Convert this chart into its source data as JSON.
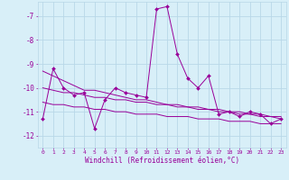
{
  "x": [
    0,
    1,
    2,
    3,
    4,
    5,
    6,
    7,
    8,
    9,
    10,
    11,
    12,
    13,
    14,
    15,
    16,
    17,
    18,
    19,
    20,
    21,
    22,
    23
  ],
  "line1": [
    -11.3,
    -9.2,
    -10.0,
    -10.3,
    -10.2,
    -11.7,
    -10.5,
    -10.0,
    -10.2,
    -10.3,
    -10.4,
    -6.7,
    -6.6,
    -8.6,
    -9.6,
    -10.0,
    -9.5,
    -11.1,
    -11.0,
    -11.2,
    -11.0,
    -11.1,
    -11.5,
    -11.3
  ],
  "trend1": [
    -9.3,
    -9.5,
    -9.7,
    -9.9,
    -10.1,
    -10.1,
    -10.2,
    -10.3,
    -10.4,
    -10.5,
    -10.5,
    -10.6,
    -10.7,
    -10.7,
    -10.8,
    -10.8,
    -10.9,
    -10.9,
    -11.0,
    -11.0,
    -11.1,
    -11.1,
    -11.2,
    -11.2
  ],
  "trend2": [
    -10.0,
    -10.1,
    -10.2,
    -10.2,
    -10.3,
    -10.4,
    -10.4,
    -10.5,
    -10.5,
    -10.6,
    -10.6,
    -10.7,
    -10.7,
    -10.8,
    -10.8,
    -10.9,
    -10.9,
    -11.0,
    -11.0,
    -11.1,
    -11.1,
    -11.2,
    -11.2,
    -11.3
  ],
  "trend3": [
    -10.6,
    -10.7,
    -10.7,
    -10.8,
    -10.8,
    -10.9,
    -10.9,
    -11.0,
    -11.0,
    -11.1,
    -11.1,
    -11.1,
    -11.2,
    -11.2,
    -11.2,
    -11.3,
    -11.3,
    -11.3,
    -11.4,
    -11.4,
    -11.4,
    -11.5,
    -11.5,
    -11.5
  ],
  "line_color": "#990099",
  "bg_color": "#d8eff8",
  "grid_color": "#b8d8e8",
  "ylabel_vals": [
    -7,
    -8,
    -9,
    -10,
    -11,
    -12
  ],
  "ylim": [
    -12.5,
    -6.4
  ],
  "xlim": [
    -0.5,
    23.5
  ],
  "xlabel": "Windchill (Refroidissement éolien,°C)"
}
